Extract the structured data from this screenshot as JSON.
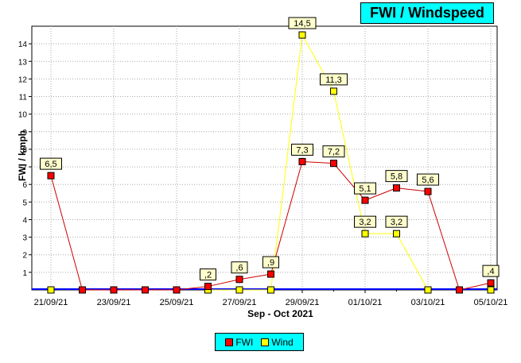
{
  "chart_data": {
    "type": "line",
    "title": "FWI / Windspeed",
    "xlabel": "Sep - Oct 2021",
    "ylabel": "FWI / kmph",
    "ylim": [
      0,
      15
    ],
    "yticks": [
      1,
      2,
      3,
      4,
      5,
      6,
      7,
      8,
      9,
      10,
      11,
      12,
      13,
      14
    ],
    "x_tick_labels": [
      "21/09/21",
      "23/09/21",
      "25/09/21",
      "27/09/21",
      "29/09/21",
      "01/10/21",
      "03/10/21",
      "05/10/21"
    ],
    "grid": true,
    "legend": "bottom",
    "series": [
      {
        "name": "FWI",
        "color": "#cc0000",
        "marker_fill": "#ff0000",
        "values": [
          6.5,
          0,
          0,
          0,
          0,
          0.2,
          0.6,
          0.9,
          7.3,
          7.2,
          5.1,
          5.8,
          5.6,
          0,
          0.4
        ],
        "labels": [
          "6,5",
          "",
          "",
          "",
          "",
          ",2",
          ",6",
          ",9",
          "7,3",
          "7,2",
          "5,1",
          "5,8",
          "5,6",
          "",
          ",4"
        ]
      },
      {
        "name": "Wind",
        "color": "#ffff00",
        "marker_fill": "#ffff00",
        "values": [
          0,
          null,
          null,
          null,
          null,
          0,
          0,
          0,
          14.5,
          11.3,
          3.2,
          3.2,
          0,
          null,
          0
        ],
        "labels": [
          "",
          "",
          "",
          "",
          "",
          "",
          "",
          "",
          "14,5",
          "11,3",
          "3,2",
          "3,2",
          "",
          "",
          ""
        ]
      }
    ]
  },
  "colors": {
    "legend_bg": "#00ffff",
    "title_bg": "#00ffff",
    "baseline": "#0000ff",
    "grid": "#aaaaaa"
  }
}
